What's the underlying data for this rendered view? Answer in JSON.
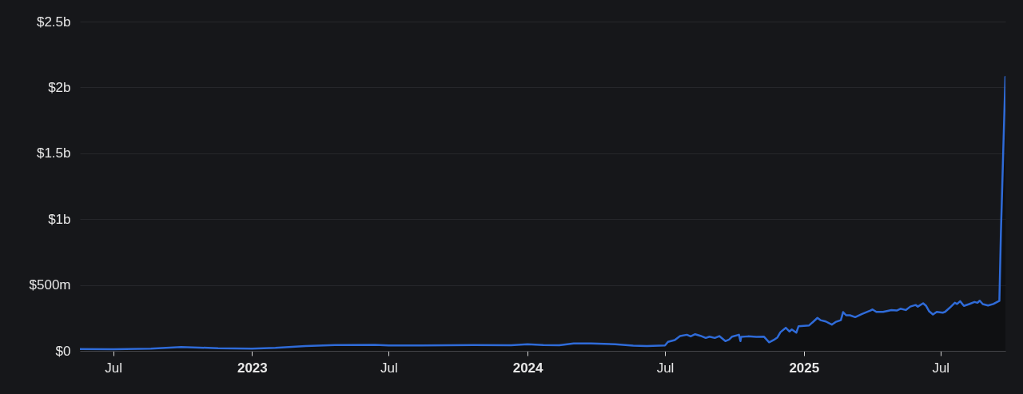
{
  "chart_data": {
    "type": "area",
    "x": [
      "2022-05-18",
      "2022-07-01",
      "2022-08-20",
      "2022-09-29",
      "2022-10-23",
      "2022-11-17",
      "2023-01-01",
      "2023-02-01",
      "2023-03-13",
      "2023-04-21",
      "2023-06-13",
      "2023-07-01",
      "2023-08-13",
      "2023-10-22",
      "2023-12-10",
      "2024-01-01",
      "2024-01-22",
      "2024-02-12",
      "2024-03-02",
      "2024-03-25",
      "2024-04-26",
      "2024-05-20",
      "2024-06-07",
      "2024-07-01",
      "2024-07-05",
      "2024-07-14",
      "2024-07-21",
      "2024-07-30",
      "2024-08-04",
      "2024-08-10",
      "2024-08-17",
      "2024-08-24",
      "2024-08-29",
      "2024-09-05",
      "2024-09-11",
      "2024-09-19",
      "2024-09-24",
      "2024-09-28",
      "2024-10-07",
      "2024-10-09",
      "2024-10-10",
      "2024-10-19",
      "2024-10-30",
      "2024-11-09",
      "2024-11-16",
      "2024-11-22",
      "2024-11-27",
      "2024-12-01",
      "2024-12-08",
      "2024-12-13",
      "2024-12-16",
      "2024-12-22",
      "2024-12-25",
      "2025-01-08",
      "2025-01-19",
      "2025-01-23",
      "2025-01-30",
      "2025-02-07",
      "2025-02-12",
      "2025-02-19",
      "2025-02-22",
      "2025-02-26",
      "2025-03-03",
      "2025-03-10",
      "2025-03-19",
      "2025-03-30",
      "2025-04-02",
      "2025-04-07",
      "2025-04-16",
      "2025-04-27",
      "2025-05-04",
      "2025-05-09",
      "2025-05-16",
      "2025-05-22",
      "2025-05-29",
      "2025-06-01",
      "2025-06-08",
      "2025-06-12",
      "2025-06-16",
      "2025-06-21",
      "2025-06-26",
      "2025-07-04",
      "2025-07-07",
      "2025-07-13",
      "2025-07-20",
      "2025-07-23",
      "2025-07-27",
      "2025-08-01",
      "2025-08-08",
      "2025-08-15",
      "2025-08-19",
      "2025-08-22",
      "2025-08-26",
      "2025-09-02",
      "2025-09-09",
      "2025-09-14",
      "2025-09-17",
      "2025-09-19",
      "2025-09-22",
      "2025-09-25"
    ],
    "series": [
      {
        "color": "#2f6bd8",
        "values": [
          13000000,
          12000000,
          17000000,
          29000000,
          25000000,
          19000000,
          17000000,
          23000000,
          37000000,
          44000000,
          45000000,
          41000000,
          41000000,
          44000000,
          42000000,
          50000000,
          44000000,
          42000000,
          56000000,
          56000000,
          50000000,
          39000000,
          37000000,
          41000000,
          68000000,
          82000000,
          112000000,
          122000000,
          110000000,
          126000000,
          114000000,
          98000000,
          108000000,
          98000000,
          112000000,
          74000000,
          86000000,
          108000000,
          122000000,
          74000000,
          106000000,
          110000000,
          106000000,
          108000000,
          65000000,
          82000000,
          102000000,
          142000000,
          175000000,
          147000000,
          162000000,
          138000000,
          187000000,
          193000000,
          250000000,
          233000000,
          223000000,
          199000000,
          219000000,
          233000000,
          294000000,
          270000000,
          270000000,
          256000000,
          280000000,
          306000000,
          314000000,
          296000000,
          296000000,
          310000000,
          306000000,
          320000000,
          310000000,
          336000000,
          348000000,
          336000000,
          361000000,
          341000000,
          300000000,
          276000000,
          296000000,
          290000000,
          296000000,
          326000000,
          365000000,
          356000000,
          377000000,
          341000000,
          355000000,
          371000000,
          365000000,
          381000000,
          355000000,
          344000000,
          356000000,
          371000000,
          380000000,
          890000000,
          1490000000,
          2080000000
        ]
      }
    ],
    "xlim": [
      "2022-05-18",
      "2025-09-25"
    ],
    "xticks": [
      {
        "value": "2022-07-01",
        "label": "Jul"
      },
      {
        "value": "2023-01-01",
        "label": "2023"
      },
      {
        "value": "2023-07-01",
        "label": "Jul"
      },
      {
        "value": "2024-01-01",
        "label": "2024"
      },
      {
        "value": "2024-07-01",
        "label": "Jul"
      },
      {
        "value": "2025-01-01",
        "label": "2025"
      },
      {
        "value": "2025-07-01",
        "label": "Jul"
      }
    ],
    "ylim": [
      0,
      2500000000
    ],
    "yticks": [
      {
        "value": 0,
        "label": "$0"
      },
      {
        "value": 500000000,
        "label": "$500m"
      },
      {
        "value": 1000000000,
        "label": "$1b"
      },
      {
        "value": 1500000000,
        "label": "$1.5b"
      },
      {
        "value": 2000000000,
        "label": "$2b"
      },
      {
        "value": 2500000000,
        "label": "$2.5b"
      }
    ],
    "grid": "y"
  }
}
